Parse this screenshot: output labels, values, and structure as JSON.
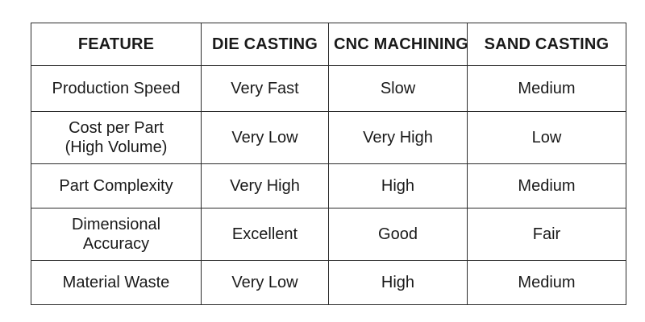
{
  "table": {
    "headers": [
      "FEATURE",
      "DIE CASTING",
      "CNC MACHINING",
      "SAND CASTING"
    ],
    "rows": [
      {
        "feature": [
          "Production Speed"
        ],
        "die_casting": "Very Fast",
        "cnc_machining": "Slow",
        "sand_casting": "Medium"
      },
      {
        "feature": [
          "Cost per Part",
          "(High Volume)"
        ],
        "die_casting": "Very Low",
        "cnc_machining": "Very High",
        "sand_casting": "Low"
      },
      {
        "feature": [
          "Part Complexity"
        ],
        "die_casting": "Very High",
        "cnc_machining": "High",
        "sand_casting": "Medium"
      },
      {
        "feature": [
          "Dimensional",
          "Accuracy"
        ],
        "die_casting": "Excellent",
        "cnc_machining": "Good",
        "sand_casting": "Fair"
      },
      {
        "feature": [
          "Material Waste"
        ],
        "die_casting": "Very Low",
        "cnc_machining": "High",
        "sand_casting": "Medium"
      }
    ]
  }
}
